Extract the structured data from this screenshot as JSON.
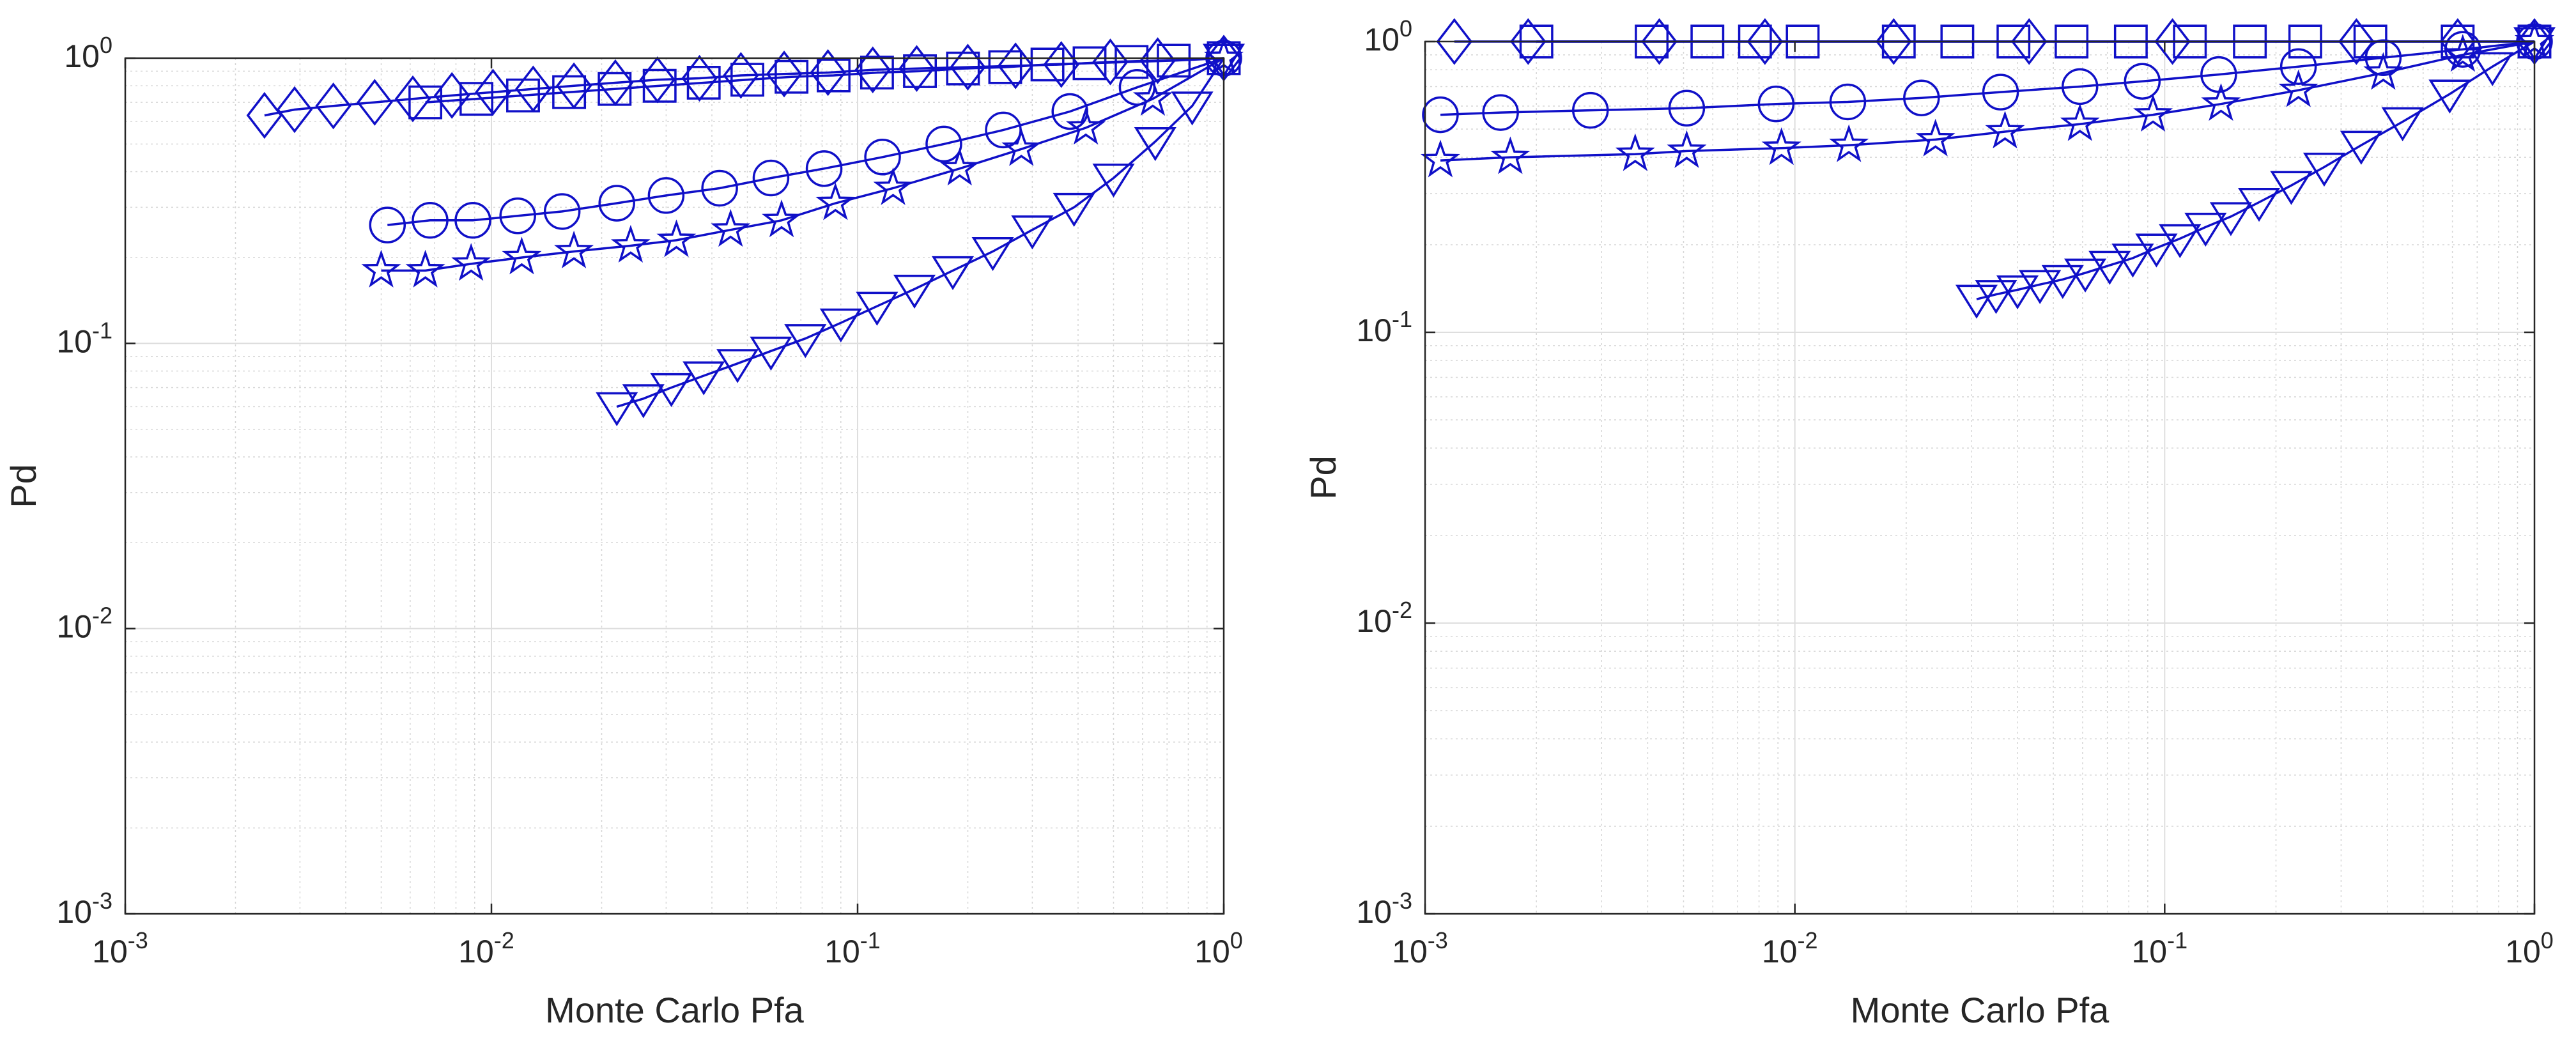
{
  "chart_data": [
    {
      "type": "line",
      "title": "",
      "xlabel": "Monte Carlo Pfa",
      "ylabel": "Pd",
      "xscale": "log",
      "yscale": "log",
      "xlim": [
        0.001,
        1
      ],
      "ylim": [
        0.001,
        1
      ],
      "x_tick_labels": [
        {
          "base": "10",
          "exp": "-3"
        },
        {
          "base": "10",
          "exp": "-2"
        },
        {
          "base": "10",
          "exp": "-1"
        },
        {
          "base": "10",
          "exp": "0"
        }
      ],
      "y_tick_labels": [
        {
          "base": "10",
          "exp": "-3"
        },
        {
          "base": "10",
          "exp": "-2"
        },
        {
          "base": "10",
          "exp": "-1"
        },
        {
          "base": "10",
          "exp": "0"
        }
      ],
      "grid": true,
      "minor_grid": true,
      "color": "#1010c8",
      "series": [
        {
          "marker": "diamond",
          "x": [
            0.0024,
            0.0029,
            0.0037,
            0.0048,
            0.0061,
            0.0078,
            0.0101,
            0.013,
            0.0168,
            0.0218,
            0.0284,
            0.037,
            0.048,
            0.063,
            0.083,
            0.11,
            0.145,
            0.2,
            0.27,
            0.36,
            0.49,
            0.66,
            1.0
          ],
          "y": [
            0.63,
            0.66,
            0.68,
            0.7,
            0.72,
            0.74,
            0.76,
            0.78,
            0.8,
            0.82,
            0.84,
            0.85,
            0.87,
            0.88,
            0.89,
            0.91,
            0.92,
            0.93,
            0.94,
            0.95,
            0.97,
            0.98,
            1.0
          ]
        },
        {
          "marker": "square",
          "x": [
            0.0066,
            0.0091,
            0.0122,
            0.0163,
            0.0217,
            0.0288,
            0.038,
            0.05,
            0.066,
            0.086,
            0.113,
            0.148,
            0.194,
            0.253,
            0.33,
            0.43,
            0.56,
            0.73,
            1.0
          ],
          "y": [
            0.7,
            0.72,
            0.74,
            0.76,
            0.78,
            0.8,
            0.82,
            0.84,
            0.86,
            0.87,
            0.89,
            0.9,
            0.92,
            0.93,
            0.95,
            0.96,
            0.97,
            0.98,
            1.0
          ]
        },
        {
          "marker": "circle",
          "x": [
            0.0052,
            0.0068,
            0.0089,
            0.0118,
            0.0156,
            0.022,
            0.03,
            0.042,
            0.058,
            0.081,
            0.117,
            0.172,
            0.25,
            0.38,
            0.58,
            1.0
          ],
          "y": [
            0.26,
            0.27,
            0.27,
            0.28,
            0.29,
            0.31,
            0.33,
            0.35,
            0.38,
            0.41,
            0.45,
            0.5,
            0.56,
            0.65,
            0.79,
            1.0
          ]
        },
        {
          "marker": "pentagram",
          "x": [
            0.005,
            0.0066,
            0.0088,
            0.0121,
            0.0168,
            0.024,
            0.032,
            0.045,
            0.062,
            0.087,
            0.125,
            0.19,
            0.28,
            0.42,
            0.64,
            1.0
          ],
          "y": [
            0.18,
            0.18,
            0.19,
            0.2,
            0.21,
            0.22,
            0.23,
            0.25,
            0.27,
            0.31,
            0.35,
            0.41,
            0.48,
            0.57,
            0.72,
            1.0
          ]
        },
        {
          "marker": "triangle-down",
          "x": [
            0.022,
            0.026,
            0.031,
            0.038,
            0.047,
            0.058,
            0.072,
            0.09,
            0.113,
            0.143,
            0.182,
            0.234,
            0.3,
            0.39,
            0.5,
            0.65,
            0.82,
            1.0
          ],
          "y": [
            0.06,
            0.064,
            0.07,
            0.077,
            0.085,
            0.094,
            0.104,
            0.118,
            0.135,
            0.155,
            0.18,
            0.21,
            0.25,
            0.3,
            0.38,
            0.51,
            0.68,
            1.0
          ]
        }
      ]
    },
    {
      "type": "line",
      "title": "",
      "xlabel": "Monte Carlo Pfa",
      "ylabel": "Pd",
      "xscale": "log",
      "yscale": "log",
      "xlim": [
        0.001,
        1
      ],
      "ylim": [
        0.001,
        1
      ],
      "x_tick_labels": [
        {
          "base": "10",
          "exp": "-3"
        },
        {
          "base": "10",
          "exp": "-2"
        },
        {
          "base": "10",
          "exp": "-1"
        },
        {
          "base": "10",
          "exp": "0"
        }
      ],
      "y_tick_labels": [
        {
          "base": "10",
          "exp": "-3"
        },
        {
          "base": "10",
          "exp": "-2"
        },
        {
          "base": "10",
          "exp": "-1"
        },
        {
          "base": "10",
          "exp": "0"
        }
      ],
      "grid": true,
      "minor_grid": true,
      "color": "#1010c8",
      "series": [
        {
          "marker": "diamond",
          "x": [
            0.0012,
            0.0019,
            0.0043,
            0.0083,
            0.0185,
            0.043,
            0.105,
            0.33,
            0.62,
            1.0
          ],
          "y": [
            1.0,
            1.0,
            1.0,
            1.0,
            1.0,
            1.0,
            1.0,
            1.0,
            1.0,
            1.0
          ]
        },
        {
          "marker": "square",
          "x": [
            0.002,
            0.0041,
            0.0058,
            0.0078,
            0.0105,
            0.0191,
            0.0275,
            0.039,
            0.056,
            0.081,
            0.117,
            0.17,
            0.24,
            0.36,
            0.62,
            1.0
          ],
          "y": [
            1.0,
            1.0,
            1.0,
            1.0,
            1.0,
            1.0,
            1.0,
            1.0,
            1.0,
            1.0,
            1.0,
            1.0,
            1.0,
            1.0,
            1.0,
            1.0
          ]
        },
        {
          "marker": "circle",
          "x": [
            0.0011,
            0.0016,
            0.0028,
            0.0051,
            0.0089,
            0.0139,
            0.022,
            0.036,
            0.059,
            0.087,
            0.14,
            0.23,
            0.39,
            0.64,
            1.0
          ],
          "y": [
            0.56,
            0.57,
            0.58,
            0.59,
            0.61,
            0.62,
            0.64,
            0.67,
            0.7,
            0.73,
            0.77,
            0.82,
            0.88,
            0.94,
            1.0
          ]
        },
        {
          "marker": "pentagram",
          "x": [
            0.0011,
            0.0017,
            0.0037,
            0.0051,
            0.0092,
            0.014,
            0.024,
            0.037,
            0.059,
            0.093,
            0.142,
            0.23,
            0.39,
            0.64,
            1.0
          ],
          "y": [
            0.39,
            0.4,
            0.41,
            0.42,
            0.43,
            0.44,
            0.46,
            0.49,
            0.52,
            0.56,
            0.61,
            0.68,
            0.78,
            0.9,
            1.0
          ]
        },
        {
          "marker": "triangle-down",
          "x": [
            0.031,
            0.035,
            0.04,
            0.046,
            0.053,
            0.061,
            0.071,
            0.082,
            0.095,
            0.11,
            0.129,
            0.151,
            0.18,
            0.22,
            0.27,
            0.34,
            0.44,
            0.59,
            0.77,
            1.0
          ],
          "y": [
            0.13,
            0.135,
            0.14,
            0.146,
            0.152,
            0.16,
            0.17,
            0.18,
            0.195,
            0.21,
            0.23,
            0.25,
            0.28,
            0.32,
            0.37,
            0.44,
            0.53,
            0.66,
            0.82,
            1.0
          ]
        }
      ]
    }
  ]
}
